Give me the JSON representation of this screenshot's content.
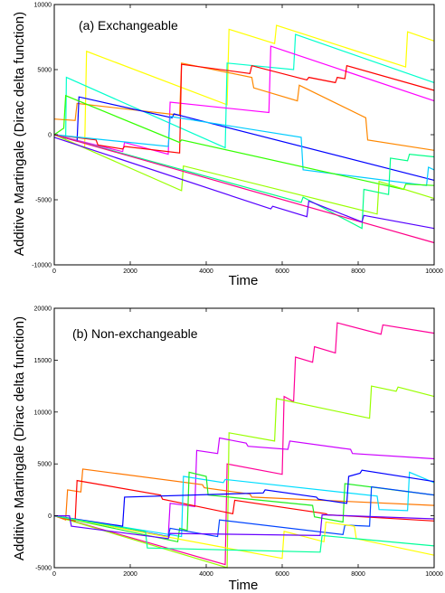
{
  "chart_data": [
    {
      "type": "line",
      "title": "(a) Exchangeable",
      "xlabel": "Time",
      "ylabel": "Additive Martingale (Dirac delta function)",
      "xlim": [
        0,
        10000
      ],
      "ylim": [
        -10000,
        10000
      ],
      "xticks": [
        0,
        2000,
        4000,
        6000,
        8000,
        10000
      ],
      "yticks": [
        -10000,
        -5000,
        0,
        5000,
        10000
      ],
      "grid": false,
      "series": [
        {
          "color": "#ffff00",
          "points": [
            [
              0,
              0
            ],
            [
              800,
              -1000
            ],
            [
              850,
              6400
            ],
            [
              4550,
              2300
            ],
            [
              4600,
              8100
            ],
            [
              5800,
              7000
            ],
            [
              5850,
              8400
            ],
            [
              9250,
              5200
            ],
            [
              9300,
              7900
            ],
            [
              10000,
              7200
            ]
          ]
        },
        {
          "color": "#00ffcc",
          "points": [
            [
              0,
              0
            ],
            [
              300,
              -300
            ],
            [
              320,
              4400
            ],
            [
              4500,
              -1000
            ],
            [
              4550,
              5500
            ],
            [
              6300,
              5000
            ],
            [
              6350,
              7700
            ],
            [
              10000,
              4000
            ]
          ]
        },
        {
          "color": "#ff00ff",
          "points": [
            [
              0,
              0
            ],
            [
              1800,
              -1300
            ],
            [
              1850,
              -600
            ],
            [
              3000,
              -1500
            ],
            [
              3050,
              2500
            ],
            [
              5650,
              1700
            ],
            [
              5700,
              6800
            ],
            [
              10000,
              2600
            ]
          ]
        },
        {
          "color": "#ff8800",
          "points": [
            [
              0,
              1200
            ],
            [
              550,
              1100
            ],
            [
              600,
              2400
            ],
            [
              3300,
              1500
            ],
            [
              3350,
              5500
            ],
            [
              5200,
              4400
            ],
            [
              5250,
              3600
            ],
            [
              6400,
              2600
            ],
            [
              6450,
              3800
            ],
            [
              8200,
              1300
            ],
            [
              8250,
              -400
            ],
            [
              10000,
              -1200
            ]
          ]
        },
        {
          "color": "#ff0000",
          "points": [
            [
              0,
              0
            ],
            [
              1100,
              -400
            ],
            [
              1150,
              -800
            ],
            [
              1800,
              -1100
            ],
            [
              1850,
              -900
            ],
            [
              3300,
              -1400
            ],
            [
              3350,
              5400
            ],
            [
              5150,
              4700
            ],
            [
              5200,
              5300
            ],
            [
              6650,
              4200
            ],
            [
              6700,
              4400
            ],
            [
              7400,
              4000
            ],
            [
              7450,
              4400
            ],
            [
              7650,
              4300
            ],
            [
              7700,
              5300
            ],
            [
              10000,
              3400
            ]
          ]
        },
        {
          "color": "#0000ff",
          "points": [
            [
              0,
              0
            ],
            [
              600,
              -500
            ],
            [
              650,
              2900
            ],
            [
              3100,
              1300
            ],
            [
              3150,
              1600
            ],
            [
              10000,
              -3500
            ]
          ]
        },
        {
          "color": "#00ccff",
          "points": [
            [
              0,
              0
            ],
            [
              3000,
              -900
            ],
            [
              3050,
              1400
            ],
            [
              6500,
              -200
            ],
            [
              6550,
              -2700
            ],
            [
              9800,
              -3900
            ],
            [
              9850,
              -2500
            ],
            [
              10000,
              -2700
            ]
          ]
        },
        {
          "color": "#33ff00",
          "points": [
            [
              0,
              0
            ],
            [
              250,
              500
            ],
            [
              300,
              3000
            ],
            [
              3300,
              -600
            ],
            [
              3350,
              -400
            ],
            [
              9200,
              -4200
            ],
            [
              9250,
              -3800
            ],
            [
              10000,
              -3900
            ]
          ]
        },
        {
          "color": "#99ff00",
          "points": [
            [
              0,
              0
            ],
            [
              3350,
              -4300
            ],
            [
              3400,
              -2400
            ],
            [
              8500,
              -6100
            ],
            [
              8550,
              -3600
            ],
            [
              10000,
              -4900
            ]
          ]
        },
        {
          "color": "#00ff88",
          "points": [
            [
              0,
              0
            ],
            [
              6500,
              -5200
            ],
            [
              6550,
              -4800
            ],
            [
              8100,
              -7200
            ],
            [
              8150,
              -4200
            ],
            [
              8800,
              -4600
            ],
            [
              8850,
              -1800
            ],
            [
              9300,
              -2000
            ],
            [
              9350,
              -1500
            ],
            [
              10000,
              -1700
            ]
          ]
        },
        {
          "color": "#ff0088",
          "points": [
            [
              0,
              0
            ],
            [
              10000,
              -8300
            ]
          ]
        },
        {
          "color": "#5500ff",
          "points": [
            [
              0,
              -200
            ],
            [
              5700,
              -5700
            ],
            [
              5750,
              -5500
            ],
            [
              6650,
              -6300
            ],
            [
              6700,
              -5100
            ],
            [
              8100,
              -6700
            ],
            [
              8150,
              -6200
            ],
            [
              10000,
              -7200
            ]
          ]
        }
      ]
    },
    {
      "type": "line",
      "title": "(b) Non-exchangeable",
      "xlabel": "Time",
      "ylabel": "Additive Martingale (Dirac delta function)",
      "xlim": [
        0,
        10000
      ],
      "ylim": [
        -5000,
        20000
      ],
      "xticks": [
        0,
        2000,
        4000,
        6000,
        8000,
        10000
      ],
      "yticks": [
        -5000,
        0,
        5000,
        10000,
        15000,
        20000
      ],
      "grid": false,
      "series": [
        {
          "color": "#ff0099",
          "points": [
            [
              0,
              0
            ],
            [
              4500,
              -4700
            ],
            [
              4550,
              5000
            ],
            [
              6000,
              4000
            ],
            [
              6050,
              11500
            ],
            [
              6300,
              11000
            ],
            [
              6350,
              15300
            ],
            [
              6800,
              14800
            ],
            [
              6850,
              16300
            ],
            [
              7400,
              15700
            ],
            [
              7450,
              18600
            ],
            [
              8600,
              17500
            ],
            [
              8650,
              18400
            ],
            [
              10000,
              17600
            ]
          ]
        },
        {
          "color": "#99ff00",
          "points": [
            [
              0,
              0
            ],
            [
              4550,
              -5000
            ],
            [
              4600,
              8000
            ],
            [
              5800,
              7200
            ],
            [
              5850,
              11300
            ],
            [
              8300,
              9400
            ],
            [
              8350,
              12500
            ],
            [
              9000,
              12000
            ],
            [
              9050,
              12400
            ],
            [
              10000,
              11500
            ]
          ]
        },
        {
          "color": "#cc00ff",
          "points": [
            [
              0,
              0
            ],
            [
              3000,
              -2000
            ],
            [
              3050,
              1200
            ],
            [
              3700,
              900
            ],
            [
              3750,
              6300
            ],
            [
              4300,
              6000
            ],
            [
              4350,
              7500
            ],
            [
              5050,
              7000
            ],
            [
              5100,
              6700
            ],
            [
              6150,
              6400
            ],
            [
              6200,
              7200
            ],
            [
              7800,
              6400
            ],
            [
              7850,
              6000
            ],
            [
              10000,
              5500
            ]
          ]
        },
        {
          "color": "#ff7700",
          "points": [
            [
              0,
              0
            ],
            [
              300,
              -400
            ],
            [
              350,
              2500
            ],
            [
              700,
              2300
            ],
            [
              750,
              4500
            ],
            [
              3900,
              3000
            ],
            [
              3950,
              2700
            ],
            [
              5150,
              2100
            ],
            [
              5200,
              1800
            ],
            [
              10000,
              1000
            ]
          ]
        },
        {
          "color": "#ff0000",
          "points": [
            [
              0,
              0
            ],
            [
              550,
              -500
            ],
            [
              600,
              3400
            ],
            [
              2800,
              2000
            ],
            [
              2850,
              1600
            ],
            [
              4700,
              200
            ],
            [
              4750,
              1500
            ],
            [
              7150,
              200
            ],
            [
              7200,
              100
            ],
            [
              10000,
              -500
            ]
          ]
        },
        {
          "color": "#00ddff",
          "points": [
            [
              0,
              0
            ],
            [
              3350,
              -2000
            ],
            [
              3400,
              3800
            ],
            [
              4450,
              3200
            ],
            [
              4500,
              3500
            ],
            [
              8500,
              1900
            ],
            [
              8550,
              600
            ],
            [
              9300,
              500
            ],
            [
              9350,
              4200
            ],
            [
              10000,
              3200
            ]
          ]
        },
        {
          "color": "#22ee22",
          "points": [
            [
              0,
              0
            ],
            [
              3250,
              -2500
            ],
            [
              3300,
              -1200
            ],
            [
              3500,
              -1400
            ],
            [
              3550,
              4200
            ],
            [
              4000,
              3800
            ],
            [
              4050,
              2000
            ],
            [
              6800,
              1000
            ],
            [
              6850,
              -100
            ],
            [
              7600,
              -600
            ],
            [
              7650,
              3100
            ],
            [
              10000,
              2000
            ]
          ]
        },
        {
          "color": "#0000ff",
          "points": [
            [
              0,
              0
            ],
            [
              1800,
              -1000
            ],
            [
              1850,
              1800
            ],
            [
              5500,
              2200
            ],
            [
              5550,
              2500
            ],
            [
              6900,
              1800
            ],
            [
              6950,
              1600
            ],
            [
              7700,
              1200
            ],
            [
              7750,
              3800
            ],
            [
              8050,
              4100
            ],
            [
              8100,
              4400
            ],
            [
              10000,
              3300
            ]
          ]
        },
        {
          "color": "#0044ff",
          "points": [
            [
              0,
              0
            ],
            [
              3000,
              -2000
            ],
            [
              3050,
              -1200
            ],
            [
              4300,
              -2000
            ],
            [
              4350,
              -400
            ],
            [
              7600,
              -1800
            ],
            [
              7650,
              -900
            ],
            [
              8300,
              -1000
            ],
            [
              8350,
              2800
            ],
            [
              10000,
              2000
            ]
          ]
        },
        {
          "color": "#ffff00",
          "points": [
            [
              0,
              0
            ],
            [
              6000,
              -4100
            ],
            [
              6050,
              -1500
            ],
            [
              7100,
              -2500
            ],
            [
              7150,
              -600
            ],
            [
              7900,
              -1000
            ],
            [
              7950,
              -2200
            ],
            [
              10000,
              -3800
            ]
          ]
        },
        {
          "color": "#00ff99",
          "points": [
            [
              0,
              0
            ],
            [
              2400,
              -1500
            ],
            [
              2450,
              -3100
            ],
            [
              7000,
              -3500
            ],
            [
              7050,
              -1900
            ],
            [
              10000,
              -2900
            ]
          ]
        },
        {
          "color": "#6600ff",
          "points": [
            [
              0,
              0
            ],
            [
              400,
              0
            ],
            [
              450,
              -1000
            ],
            [
              3000,
              -2200
            ],
            [
              3050,
              -1700
            ],
            [
              7000,
              -1900
            ],
            [
              7050,
              100
            ],
            [
              10000,
              -300
            ]
          ]
        }
      ]
    }
  ]
}
